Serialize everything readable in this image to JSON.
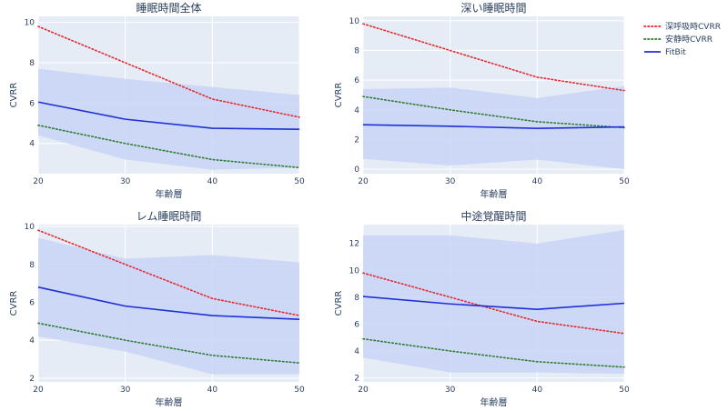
{
  "colors": {
    "plot_bg": "#e5ecf6",
    "grid": "#ffffff",
    "band": "#c9d5f7",
    "deep": "#e8262a",
    "rest": "#2c7d2c",
    "fitbit": "#1f2fd6"
  },
  "legend": [
    {
      "key": "deep",
      "label": "深呼吸時CVRR",
      "style": "dotted"
    },
    {
      "key": "rest",
      "label": "安静時CVRR",
      "style": "dotted"
    },
    {
      "key": "fitbit",
      "label": "FitBit",
      "style": "solid"
    }
  ],
  "chart_data": [
    {
      "type": "line",
      "title": "睡眠時間全体",
      "xlabel": "年齢層",
      "ylabel": "CVRR",
      "x": [
        20,
        30,
        40,
        50
      ],
      "xlim": [
        20,
        50
      ],
      "ylim": [
        2.5,
        10.3
      ],
      "yticks": [
        4,
        6,
        8,
        10
      ],
      "series": [
        {
          "name": "深呼吸時CVRR",
          "key": "deep",
          "values": [
            9.8,
            8.0,
            6.2,
            5.3
          ]
        },
        {
          "name": "安静時CVRR",
          "key": "rest",
          "values": [
            4.9,
            4.0,
            3.2,
            2.8
          ]
        },
        {
          "name": "FitBit",
          "key": "fitbit",
          "values": [
            6.05,
            5.2,
            4.75,
            4.7
          ],
          "band_upper": [
            7.7,
            7.2,
            6.8,
            6.4
          ],
          "band_lower": [
            4.4,
            3.2,
            2.7,
            2.8
          ]
        }
      ]
    },
    {
      "type": "line",
      "title": "深い睡眠時間",
      "xlabel": "年齢層",
      "ylabel": "CVRR",
      "x": [
        20,
        30,
        40,
        50
      ],
      "xlim": [
        20,
        50
      ],
      "ylim": [
        -0.3,
        10.3
      ],
      "yticks": [
        0,
        2,
        4,
        6,
        8,
        10
      ],
      "series": [
        {
          "name": "深呼吸時CVRR",
          "key": "deep",
          "values": [
            9.8,
            8.0,
            6.2,
            5.3
          ]
        },
        {
          "name": "安静時CVRR",
          "key": "rest",
          "values": [
            4.9,
            4.0,
            3.2,
            2.8
          ]
        },
        {
          "name": "FitBit",
          "key": "fitbit",
          "values": [
            3.0,
            2.9,
            2.75,
            2.85
          ],
          "band_upper": [
            5.4,
            5.5,
            4.8,
            5.6
          ],
          "band_lower": [
            0.7,
            0.25,
            0.65,
            0.0
          ]
        }
      ]
    },
    {
      "type": "line",
      "title": "レム睡眠時間",
      "xlabel": "年齢層",
      "ylabel": "CVRR",
      "x": [
        20,
        30,
        40,
        50
      ],
      "xlim": [
        20,
        50
      ],
      "ylim": [
        1.8,
        10.1
      ],
      "yticks": [
        2,
        4,
        6,
        8,
        10
      ],
      "series": [
        {
          "name": "深呼吸時CVRR",
          "key": "deep",
          "values": [
            9.8,
            8.0,
            6.2,
            5.3
          ]
        },
        {
          "name": "安静時CVRR",
          "key": "rest",
          "values": [
            4.9,
            4.0,
            3.2,
            2.8
          ]
        },
        {
          "name": "FitBit",
          "key": "fitbit",
          "values": [
            6.8,
            5.8,
            5.3,
            5.1
          ],
          "band_upper": [
            9.4,
            8.3,
            8.5,
            8.1
          ],
          "band_lower": [
            4.2,
            3.4,
            2.2,
            2.2
          ]
        }
      ]
    },
    {
      "type": "line",
      "title": "中途覚醒時間",
      "xlabel": "年齢層",
      "ylabel": "CVRR",
      "x": [
        20,
        30,
        40,
        50
      ],
      "xlim": [
        20,
        50
      ],
      "ylim": [
        1.7,
        13.4
      ],
      "yticks": [
        2,
        4,
        6,
        8,
        10,
        12
      ],
      "series": [
        {
          "name": "深呼吸時CVRR",
          "key": "deep",
          "values": [
            9.8,
            8.0,
            6.2,
            5.3
          ]
        },
        {
          "name": "安静時CVRR",
          "key": "rest",
          "values": [
            4.9,
            4.0,
            3.2,
            2.8
          ]
        },
        {
          "name": "FitBit",
          "key": "fitbit",
          "values": [
            8.05,
            7.5,
            7.1,
            7.55
          ],
          "band_upper": [
            12.6,
            12.6,
            12.0,
            13.0
          ],
          "band_lower": [
            3.5,
            2.4,
            2.4,
            2.3
          ]
        }
      ]
    }
  ]
}
